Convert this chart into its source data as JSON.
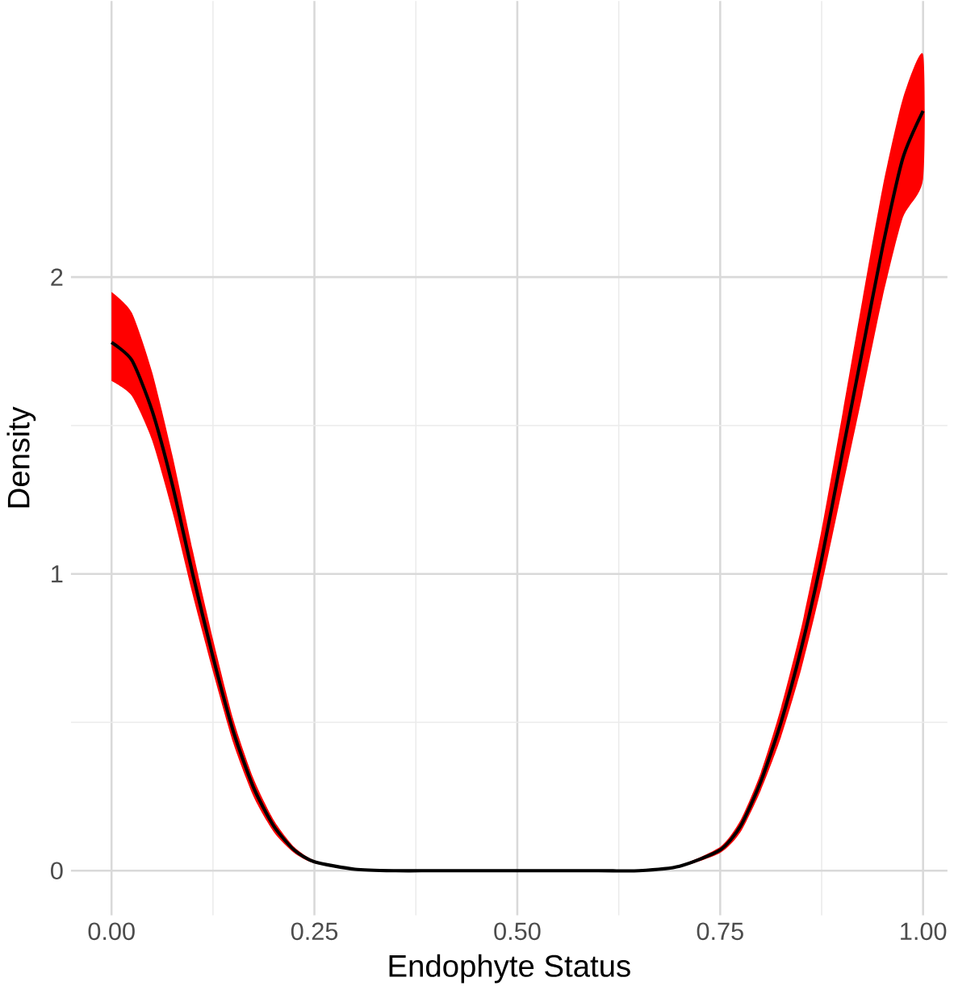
{
  "chart_data": {
    "type": "line",
    "xlabel": "Endophyte Status",
    "ylabel": "Density",
    "x": [
      0,
      0.025,
      0.05,
      0.075,
      0.1,
      0.125,
      0.15,
      0.175,
      0.2,
      0.225,
      0.25,
      0.3,
      0.35,
      0.4,
      0.5,
      0.6,
      0.65,
      0.7,
      0.75,
      0.775,
      0.8,
      0.825,
      0.85,
      0.875,
      0.9,
      0.925,
      0.95,
      0.975,
      1.0
    ],
    "series": [
      {
        "color": "#000000",
        "values": [
          1.78,
          1.72,
          1.55,
          1.3,
          1.0,
          0.72,
          0.47,
          0.28,
          0.15,
          0.07,
          0.03,
          0.005,
          0,
          0,
          0,
          0,
          0,
          0.015,
          0.07,
          0.15,
          0.3,
          0.5,
          0.75,
          1.05,
          1.4,
          1.75,
          2.1,
          2.4,
          2.56
        ],
        "lower": [
          1.65,
          1.6,
          1.45,
          1.21,
          0.93,
          0.67,
          0.43,
          0.25,
          0.13,
          0.06,
          0.025,
          0.004,
          0,
          0,
          0,
          0,
          0,
          0.012,
          0.06,
          0.13,
          0.27,
          0.45,
          0.68,
          0.96,
          1.28,
          1.6,
          1.93,
          2.2,
          2.33
        ],
        "upper": [
          1.95,
          1.88,
          1.68,
          1.4,
          1.08,
          0.78,
          0.51,
          0.31,
          0.17,
          0.08,
          0.035,
          0.006,
          0,
          0,
          0,
          0,
          0,
          0.018,
          0.08,
          0.17,
          0.33,
          0.55,
          0.82,
          1.15,
          1.53,
          1.92,
          2.3,
          2.6,
          2.75
        ]
      }
    ],
    "xlim": [
      -0.05,
      1.03
    ],
    "ylim": [
      -0.15,
      2.93
    ],
    "xticks": [
      {
        "value": 0,
        "label": "0.00"
      },
      {
        "value": 0.25,
        "label": "0.25"
      },
      {
        "value": 0.5,
        "label": "0.50"
      },
      {
        "value": 0.75,
        "label": "0.75"
      },
      {
        "value": 1,
        "label": "1.00"
      }
    ],
    "yticks": [
      0,
      1,
      2
    ],
    "grid": true,
    "marker": "none",
    "line_style": "solid"
  }
}
